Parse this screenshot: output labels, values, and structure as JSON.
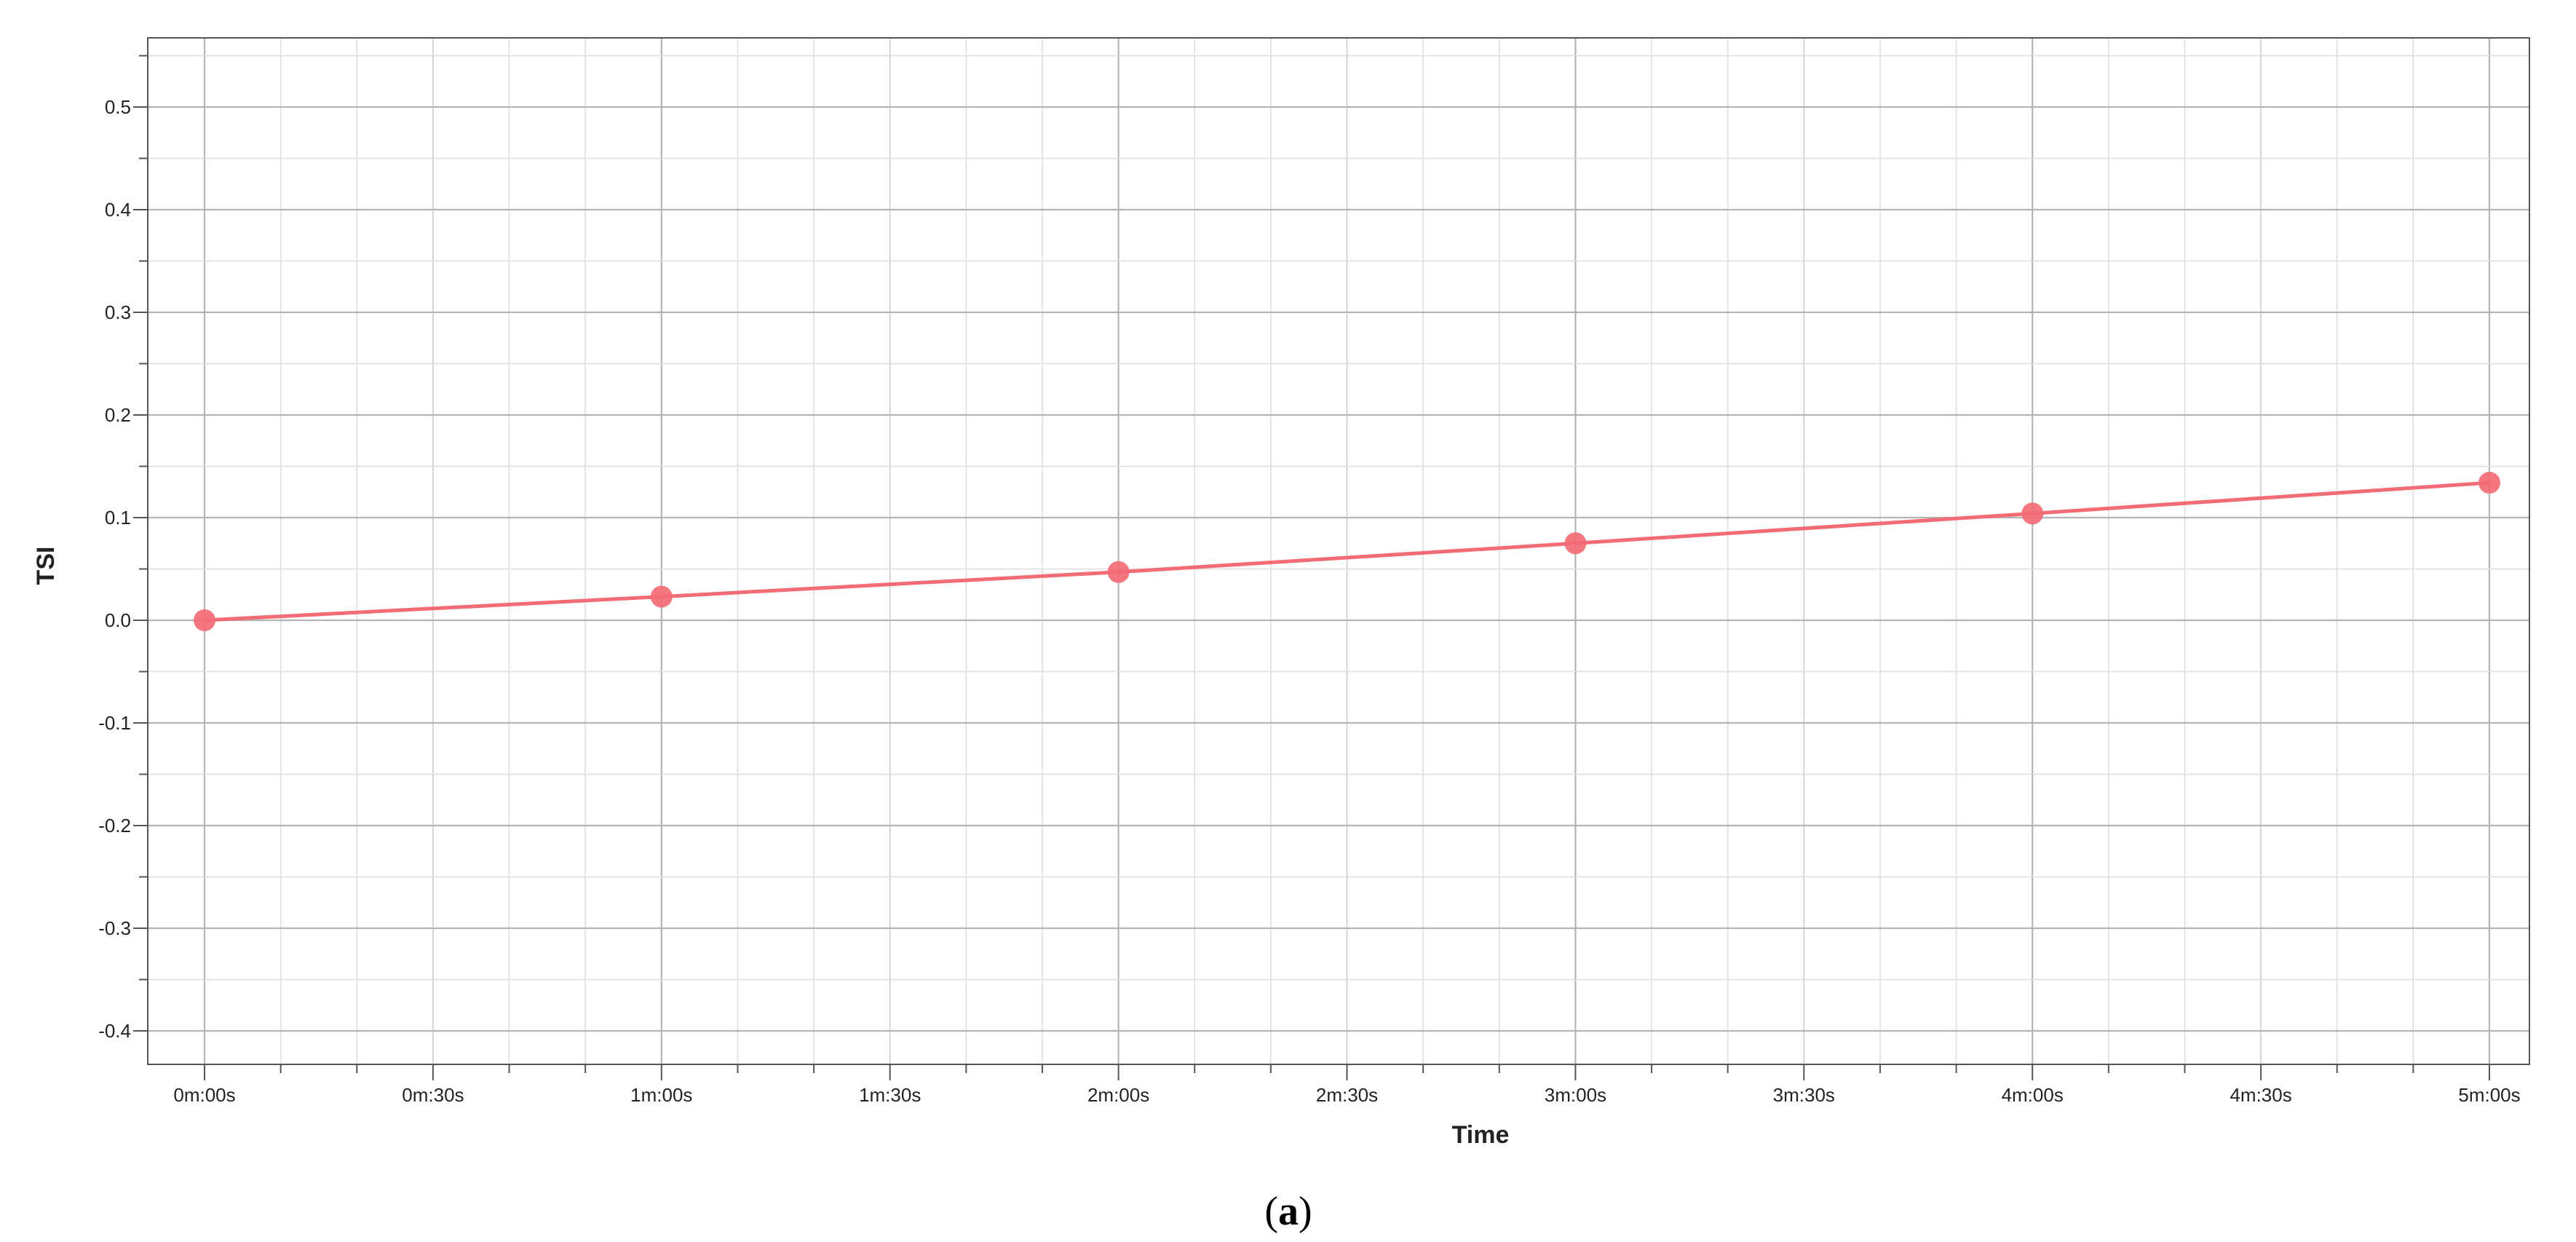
{
  "chart_data": {
    "type": "line",
    "xlabel": "Time",
    "ylabel": "TSI",
    "x_unit": "seconds",
    "xlim": [
      0,
      300
    ],
    "ylim": [
      -0.45,
      0.57
    ],
    "x_ticks": [
      {
        "value": 0,
        "label": "0m:00s"
      },
      {
        "value": 30,
        "label": "0m:30s"
      },
      {
        "value": 60,
        "label": "1m:00s"
      },
      {
        "value": 90,
        "label": "1m:30s"
      },
      {
        "value": 120,
        "label": "2m:00s"
      },
      {
        "value": 150,
        "label": "2m:30s"
      },
      {
        "value": 180,
        "label": "3m:00s"
      },
      {
        "value": 210,
        "label": "3m:30s"
      },
      {
        "value": 240,
        "label": "4m:00s"
      },
      {
        "value": 270,
        "label": "4m:30s"
      },
      {
        "value": 300,
        "label": "5m:00s"
      }
    ],
    "y_ticks": [
      {
        "value": 0.5,
        "label": "0.5"
      },
      {
        "value": 0.4,
        "label": "0.4"
      },
      {
        "value": 0.3,
        "label": "0.3"
      },
      {
        "value": 0.2,
        "label": "0.2"
      },
      {
        "value": 0.1,
        "label": "0.1"
      },
      {
        "value": 0.0,
        "label": "0.0"
      },
      {
        "value": -0.1,
        "label": "-0.1"
      },
      {
        "value": -0.2,
        "label": "-0.2"
      },
      {
        "value": -0.3,
        "label": "-0.3"
      },
      {
        "value": -0.4,
        "label": "-0.4"
      }
    ],
    "grid": true,
    "series": [
      {
        "color": "#f36b74",
        "points": [
          {
            "x": 0,
            "y": 0.0
          },
          {
            "x": 60,
            "y": 0.023
          },
          {
            "x": 120,
            "y": 0.047
          },
          {
            "x": 180,
            "y": 0.075
          },
          {
            "x": 240,
            "y": 0.104
          },
          {
            "x": 300,
            "y": 0.134
          }
        ]
      }
    ]
  },
  "caption": {
    "open": "(",
    "letter": "a",
    "close": ")"
  }
}
